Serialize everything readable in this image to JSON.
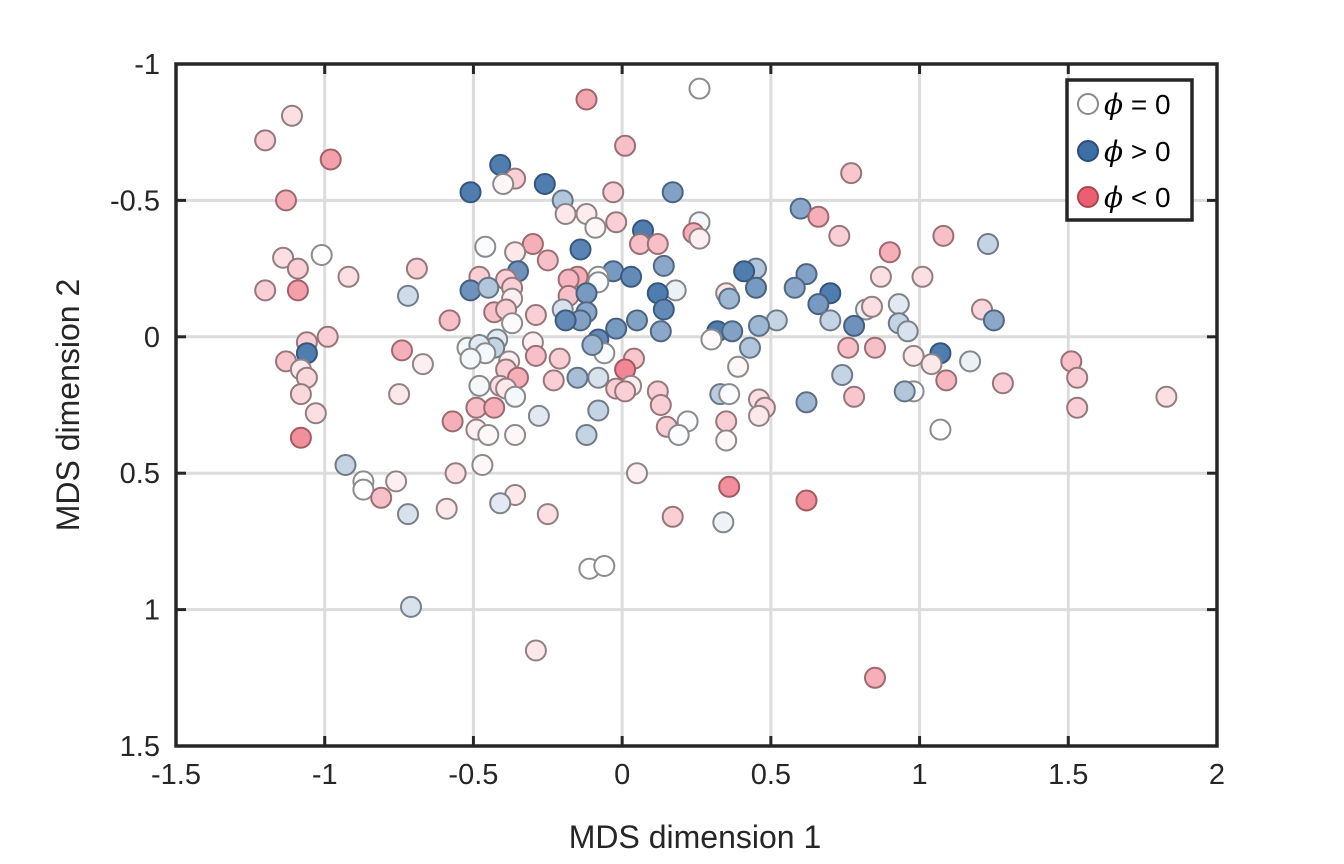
{
  "chart_data": {
    "type": "scatter",
    "title": "",
    "xlabel": "MDS dimension 1",
    "ylabel": "MDS dimension 2",
    "xlim": [
      -1.5,
      2
    ],
    "ylim": [
      -1,
      1.5
    ],
    "y_reversed": true,
    "grid": true,
    "legend_position": "top-right",
    "xticks": [
      -1.5,
      -1,
      -0.5,
      0,
      0.5,
      1,
      1.5,
      2
    ],
    "xtick_labels": [
      "-1.5",
      "-1",
      "-0.5",
      "0",
      "0.5",
      "1",
      "1.5",
      "2"
    ],
    "yticks": [
      -1,
      -0.5,
      0,
      0.5,
      1,
      1.5
    ],
    "ytick_labels": [
      "-1",
      "-0.5",
      "0",
      "0.5",
      "1",
      "1.5"
    ],
    "legend": [
      {
        "symbol": "ϕ",
        "text": " = 0",
        "color": "#ffffff",
        "edge": "#8a8a8a"
      },
      {
        "symbol": "ϕ",
        "text": " > 0",
        "color": "#3d6ea6",
        "edge": "#2b4f7a"
      },
      {
        "symbol": "ϕ",
        "text": " < 0",
        "color": "#ec5f72",
        "edge": "#a9474f"
      }
    ],
    "colors": {
      "positive": "#3d6ea6",
      "negative": "#ec5f72",
      "neutral": "#ffffff",
      "grid": "#dcdcdc",
      "axis": "#262626"
    },
    "points": [
      {
        "x": 0.26,
        "y": -0.91,
        "phi": 0
      },
      {
        "x": -0.12,
        "y": -0.87,
        "phi": -0.55
      },
      {
        "x": -1.11,
        "y": -0.81,
        "phi": -0.2
      },
      {
        "x": -1.2,
        "y": -0.72,
        "phi": -0.3
      },
      {
        "x": 0.01,
        "y": -0.7,
        "phi": -0.4
      },
      {
        "x": -0.98,
        "y": -0.65,
        "phi": -0.6
      },
      {
        "x": -0.41,
        "y": -0.63,
        "phi": 0.9
      },
      {
        "x": 0.77,
        "y": -0.6,
        "phi": -0.35
      },
      {
        "x": -0.36,
        "y": -0.58,
        "phi": -0.3
      },
      {
        "x": -0.4,
        "y": -0.56,
        "phi": -0.05
      },
      {
        "x": -0.26,
        "y": -0.56,
        "phi": 0.9
      },
      {
        "x": -0.51,
        "y": -0.53,
        "phi": 0.9
      },
      {
        "x": 0.17,
        "y": -0.53,
        "phi": 0.65
      },
      {
        "x": -0.03,
        "y": -0.53,
        "phi": -0.3
      },
      {
        "x": -1.13,
        "y": -0.5,
        "phi": -0.5
      },
      {
        "x": -0.2,
        "y": -0.5,
        "phi": 0.4
      },
      {
        "x": 0.6,
        "y": -0.47,
        "phi": 0.6
      },
      {
        "x": -0.19,
        "y": -0.45,
        "phi": -0.15
      },
      {
        "x": -0.12,
        "y": -0.45,
        "phi": -0.12
      },
      {
        "x": 0.66,
        "y": -0.44,
        "phi": -0.5
      },
      {
        "x": 0.26,
        "y": -0.42,
        "phi": 0.05
      },
      {
        "x": -0.02,
        "y": -0.42,
        "phi": -0.3
      },
      {
        "x": -0.09,
        "y": -0.4,
        "phi": -0.05
      },
      {
        "x": 0.07,
        "y": -0.39,
        "phi": 0.9
      },
      {
        "x": 0.24,
        "y": -0.38,
        "phi": -0.5
      },
      {
        "x": 0.26,
        "y": -0.36,
        "phi": -0.1
      },
      {
        "x": 0.73,
        "y": -0.37,
        "phi": -0.3
      },
      {
        "x": 1.08,
        "y": -0.37,
        "phi": -0.4
      },
      {
        "x": 0.06,
        "y": -0.34,
        "phi": -0.4
      },
      {
        "x": 0.12,
        "y": -0.34,
        "phi": -0.4
      },
      {
        "x": -0.3,
        "y": -0.34,
        "phi": -0.5
      },
      {
        "x": -0.46,
        "y": -0.33,
        "phi": 0.02
      },
      {
        "x": 1.23,
        "y": -0.34,
        "phi": 0.3
      },
      {
        "x": -0.36,
        "y": -0.31,
        "phi": -0.15
      },
      {
        "x": -0.14,
        "y": -0.32,
        "phi": 0.85
      },
      {
        "x": 0.9,
        "y": -0.31,
        "phi": -0.5
      },
      {
        "x": -1.01,
        "y": -0.3,
        "phi": 0
      },
      {
        "x": -1.14,
        "y": -0.29,
        "phi": -0.2
      },
      {
        "x": -0.25,
        "y": -0.28,
        "phi": -0.4
      },
      {
        "x": 0.14,
        "y": -0.26,
        "phi": 0.6
      },
      {
        "x": -1.09,
        "y": -0.25,
        "phi": -0.3
      },
      {
        "x": -0.69,
        "y": -0.25,
        "phi": -0.3
      },
      {
        "x": 0.45,
        "y": -0.25,
        "phi": 0.4
      },
      {
        "x": 0.62,
        "y": -0.23,
        "phi": 0.65
      },
      {
        "x": 0.41,
        "y": -0.24,
        "phi": 0.9
      },
      {
        "x": -0.35,
        "y": -0.24,
        "phi": 0.75
      },
      {
        "x": -0.48,
        "y": -0.22,
        "phi": -0.3
      },
      {
        "x": -0.92,
        "y": -0.22,
        "phi": -0.2
      },
      {
        "x": -0.03,
        "y": -0.24,
        "phi": 0.7
      },
      {
        "x": 0.03,
        "y": -0.22,
        "phi": 0.8
      },
      {
        "x": -0.08,
        "y": -0.22,
        "phi": 0.02
      },
      {
        "x": 1.01,
        "y": -0.22,
        "phi": -0.2
      },
      {
        "x": -0.15,
        "y": -0.22,
        "phi": -0.5
      },
      {
        "x": -0.39,
        "y": -0.21,
        "phi": -0.3
      },
      {
        "x": -0.18,
        "y": -0.21,
        "phi": -0.45
      },
      {
        "x": -0.08,
        "y": -0.2,
        "phi": 0.02
      },
      {
        "x": 0.87,
        "y": -0.22,
        "phi": -0.2
      },
      {
        "x": -1.2,
        "y": -0.17,
        "phi": -0.3
      },
      {
        "x": -1.09,
        "y": -0.17,
        "phi": -0.6
      },
      {
        "x": -0.72,
        "y": -0.15,
        "phi": 0.25
      },
      {
        "x": -0.51,
        "y": -0.17,
        "phi": 0.75
      },
      {
        "x": -0.45,
        "y": -0.18,
        "phi": 0.4
      },
      {
        "x": 0.18,
        "y": -0.17,
        "phi": 0.1
      },
      {
        "x": -0.18,
        "y": -0.15,
        "phi": -0.4
      },
      {
        "x": 0.58,
        "y": -0.18,
        "phi": 0.6
      },
      {
        "x": 0.45,
        "y": -0.18,
        "phi": 0.7
      },
      {
        "x": -0.37,
        "y": -0.18,
        "phi": -0.3
      },
      {
        "x": 0.12,
        "y": -0.16,
        "phi": 0.9
      },
      {
        "x": 0.7,
        "y": -0.16,
        "phi": 0.9
      },
      {
        "x": 0.35,
        "y": -0.16,
        "phi": -0.15
      },
      {
        "x": -0.12,
        "y": -0.16,
        "phi": 0.7
      },
      {
        "x": -0.37,
        "y": -0.14,
        "phi": -0.1
      },
      {
        "x": 0.36,
        "y": -0.14,
        "phi": 0.5
      },
      {
        "x": 0.66,
        "y": -0.12,
        "phi": 0.7
      },
      {
        "x": 0.14,
        "y": -0.1,
        "phi": 0.8
      },
      {
        "x": -0.43,
        "y": -0.09,
        "phi": -0.4
      },
      {
        "x": 0.82,
        "y": -0.1,
        "phi": 0.1
      },
      {
        "x": 0.84,
        "y": -0.11,
        "phi": -0.2
      },
      {
        "x": 0.93,
        "y": -0.12,
        "phi": 0.15
      },
      {
        "x": -0.39,
        "y": -0.1,
        "phi": -0.3
      },
      {
        "x": -0.2,
        "y": -0.1,
        "phi": 0.2
      },
      {
        "x": -0.12,
        "y": -0.09,
        "phi": 0.6
      },
      {
        "x": -0.58,
        "y": -0.06,
        "phi": -0.4
      },
      {
        "x": -0.37,
        "y": -0.05,
        "phi": -0.03
      },
      {
        "x": -0.29,
        "y": -0.08,
        "phi": -0.3
      },
      {
        "x": -0.14,
        "y": -0.06,
        "phi": 0.65
      },
      {
        "x": -0.19,
        "y": -0.06,
        "phi": 0.8
      },
      {
        "x": 0.52,
        "y": -0.06,
        "phi": 0.3
      },
      {
        "x": 0.05,
        "y": -0.06,
        "phi": 0.65
      },
      {
        "x": 1.21,
        "y": -0.1,
        "phi": -0.25
      },
      {
        "x": 1.25,
        "y": -0.06,
        "phi": 0.6
      },
      {
        "x": 0.93,
        "y": -0.05,
        "phi": 0.3
      },
      {
        "x": 0.7,
        "y": -0.06,
        "phi": 0.3
      },
      {
        "x": 0.78,
        "y": -0.04,
        "phi": 0.75
      },
      {
        "x": 0.46,
        "y": -0.04,
        "phi": 0.5
      },
      {
        "x": 0.32,
        "y": -0.02,
        "phi": 0.9
      },
      {
        "x": 0.37,
        "y": -0.02,
        "phi": 0.65
      },
      {
        "x": -0.02,
        "y": -0.03,
        "phi": 0.7
      },
      {
        "x": 0.13,
        "y": -0.02,
        "phi": 0.6
      },
      {
        "x": 0.96,
        "y": -0.02,
        "phi": 0.2
      },
      {
        "x": -1.06,
        "y": 0.02,
        "phi": -0.3
      },
      {
        "x": -0.99,
        "y": 0,
        "phi": -0.3
      },
      {
        "x": -0.42,
        "y": 0.01,
        "phi": 0.15
      },
      {
        "x": -0.3,
        "y": 0.02,
        "phi": -0.1
      },
      {
        "x": -0.08,
        "y": 0.01,
        "phi": 0.8
      },
      {
        "x": 0.3,
        "y": 0.01,
        "phi": -0.03
      },
      {
        "x": -0.43,
        "y": 0.04,
        "phi": 0.3
      },
      {
        "x": -0.52,
        "y": 0.04,
        "phi": 0.05
      },
      {
        "x": -0.48,
        "y": 0.03,
        "phi": 0.15
      },
      {
        "x": 0.43,
        "y": 0.04,
        "phi": 0.4
      },
      {
        "x": 1.07,
        "y": 0.06,
        "phi": 0.9
      },
      {
        "x": -0.74,
        "y": 0.05,
        "phi": -0.5
      },
      {
        "x": -1.06,
        "y": 0.06,
        "phi": 0.9
      },
      {
        "x": 0.76,
        "y": 0.04,
        "phi": -0.4
      },
      {
        "x": 0.85,
        "y": 0.04,
        "phi": -0.4
      },
      {
        "x": -0.06,
        "y": 0.06,
        "phi": 0.02
      },
      {
        "x": -0.1,
        "y": 0.03,
        "phi": 0.5
      },
      {
        "x": -0.46,
        "y": 0.06,
        "phi": 0.05
      },
      {
        "x": -0.29,
        "y": 0.07,
        "phi": -0.4
      },
      {
        "x": -0.51,
        "y": 0.08,
        "phi": 0.05
      },
      {
        "x": 0.98,
        "y": 0.07,
        "phi": -0.15
      },
      {
        "x": -1.13,
        "y": 0.09,
        "phi": -0.35
      },
      {
        "x": -0.38,
        "y": 0.09,
        "phi": -0.1
      },
      {
        "x": -0.21,
        "y": 0.08,
        "phi": -0.3
      },
      {
        "x": 0.04,
        "y": 0.08,
        "phi": -0.35
      },
      {
        "x": 1.17,
        "y": 0.09,
        "phi": 0.1
      },
      {
        "x": 1.51,
        "y": 0.09,
        "phi": -0.4
      },
      {
        "x": -0.67,
        "y": 0.1,
        "phi": -0.1
      },
      {
        "x": 0.01,
        "y": 0.12,
        "phi": -0.75
      },
      {
        "x": 1.04,
        "y": 0.1,
        "phi": -0.15
      },
      {
        "x": 0.39,
        "y": 0.11,
        "phi": -0.05
      },
      {
        "x": -1.08,
        "y": 0.12,
        "phi": -0.15
      },
      {
        "x": -0.39,
        "y": 0.12,
        "phi": -0.3
      },
      {
        "x": -1.06,
        "y": 0.15,
        "phi": -0.25
      },
      {
        "x": 0.74,
        "y": 0.14,
        "phi": 0.3
      },
      {
        "x": -0.35,
        "y": 0.15,
        "phi": -0.5
      },
      {
        "x": -0.08,
        "y": 0.15,
        "phi": 0.2
      },
      {
        "x": -0.15,
        "y": 0.15,
        "phi": 0.45
      },
      {
        "x": 1.53,
        "y": 0.15,
        "phi": -0.3
      },
      {
        "x": 1.09,
        "y": 0.16,
        "phi": -0.45
      },
      {
        "x": 1.28,
        "y": 0.17,
        "phi": -0.3
      },
      {
        "x": -0.48,
        "y": 0.18,
        "phi": 0.05
      },
      {
        "x": 0.03,
        "y": 0.18,
        "phi": -0.1
      },
      {
        "x": -0.41,
        "y": 0.18,
        "phi": -0.2
      },
      {
        "x": -0.23,
        "y": 0.16,
        "phi": -0.3
      },
      {
        "x": 0.98,
        "y": 0.2,
        "phi": 0.02
      },
      {
        "x": -0.02,
        "y": 0.19,
        "phi": -0.3
      },
      {
        "x": -0.39,
        "y": 0.19,
        "phi": -0.15
      },
      {
        "x": 0.01,
        "y": 0.2,
        "phi": -0.3
      },
      {
        "x": 0.12,
        "y": 0.2,
        "phi": -0.3
      },
      {
        "x": 0.33,
        "y": 0.21,
        "phi": 0.35
      },
      {
        "x": 0.36,
        "y": 0.21,
        "phi": 0.02
      },
      {
        "x": 0.95,
        "y": 0.2,
        "phi": 0.4
      },
      {
        "x": 1.83,
        "y": 0.22,
        "phi": -0.2
      },
      {
        "x": -1.08,
        "y": 0.21,
        "phi": -0.25
      },
      {
        "x": -0.36,
        "y": 0.22,
        "phi": 0.05
      },
      {
        "x": -0.75,
        "y": 0.21,
        "phi": -0.15
      },
      {
        "x": 0.78,
        "y": 0.22,
        "phi": -0.35
      },
      {
        "x": 0.46,
        "y": 0.23,
        "phi": -0.2
      },
      {
        "x": 0.62,
        "y": 0.24,
        "phi": 0.5
      },
      {
        "x": 0.13,
        "y": 0.25,
        "phi": -0.3
      },
      {
        "x": 0.48,
        "y": 0.26,
        "phi": -0.25
      },
      {
        "x": -0.49,
        "y": 0.26,
        "phi": -0.4
      },
      {
        "x": -0.43,
        "y": 0.26,
        "phi": -0.5
      },
      {
        "x": 1.53,
        "y": 0.26,
        "phi": -0.3
      },
      {
        "x": -1.03,
        "y": 0.28,
        "phi": -0.2
      },
      {
        "x": -0.08,
        "y": 0.27,
        "phi": 0.3
      },
      {
        "x": -0.28,
        "y": 0.29,
        "phi": 0.15
      },
      {
        "x": 0.46,
        "y": 0.29,
        "phi": -0.15
      },
      {
        "x": -0.57,
        "y": 0.31,
        "phi": -0.5
      },
      {
        "x": 0.35,
        "y": 0.31,
        "phi": -0.3
      },
      {
        "x": 0.22,
        "y": 0.31,
        "phi": 0.02
      },
      {
        "x": 0.15,
        "y": 0.33,
        "phi": -0.3
      },
      {
        "x": -0.49,
        "y": 0.34,
        "phi": -0.1
      },
      {
        "x": 1.07,
        "y": 0.34,
        "phi": 0
      },
      {
        "x": 0.19,
        "y": 0.36,
        "phi": 0.02
      },
      {
        "x": -0.45,
        "y": 0.36,
        "phi": -0.05
      },
      {
        "x": -0.36,
        "y": 0.36,
        "phi": -0.05
      },
      {
        "x": -0.12,
        "y": 0.36,
        "phi": 0.3
      },
      {
        "x": -1.08,
        "y": 0.37,
        "phi": -0.7
      },
      {
        "x": 0.35,
        "y": 0.38,
        "phi": -0.05
      },
      {
        "x": -0.93,
        "y": 0.47,
        "phi": 0.3
      },
      {
        "x": -0.47,
        "y": 0.47,
        "phi": -0.05
      },
      {
        "x": 0.05,
        "y": 0.5,
        "phi": -0.1
      },
      {
        "x": -0.56,
        "y": 0.5,
        "phi": -0.2
      },
      {
        "x": -0.76,
        "y": 0.53,
        "phi": -0.1
      },
      {
        "x": -0.87,
        "y": 0.53,
        "phi": 0
      },
      {
        "x": -0.87,
        "y": 0.56,
        "phi": 0
      },
      {
        "x": 0.36,
        "y": 0.55,
        "phi": -0.7
      },
      {
        "x": -0.36,
        "y": 0.58,
        "phi": -0.15
      },
      {
        "x": -0.81,
        "y": 0.59,
        "phi": -0.4
      },
      {
        "x": 0.62,
        "y": 0.6,
        "phi": -0.7
      },
      {
        "x": -0.41,
        "y": 0.61,
        "phi": 0.15
      },
      {
        "x": -0.59,
        "y": 0.63,
        "phi": -0.15
      },
      {
        "x": -0.72,
        "y": 0.65,
        "phi": 0.2
      },
      {
        "x": -0.25,
        "y": 0.65,
        "phi": -0.2
      },
      {
        "x": 0.17,
        "y": 0.66,
        "phi": -0.3
      },
      {
        "x": 0.34,
        "y": 0.68,
        "phi": 0.08
      },
      {
        "x": -0.11,
        "y": 0.85,
        "phi": 0
      },
      {
        "x": -0.06,
        "y": 0.84,
        "phi": 0
      },
      {
        "x": -0.71,
        "y": 0.99,
        "phi": 0.2
      },
      {
        "x": -0.29,
        "y": 1.15,
        "phi": -0.15
      },
      {
        "x": 0.85,
        "y": 1.25,
        "phi": -0.5
      }
    ]
  }
}
